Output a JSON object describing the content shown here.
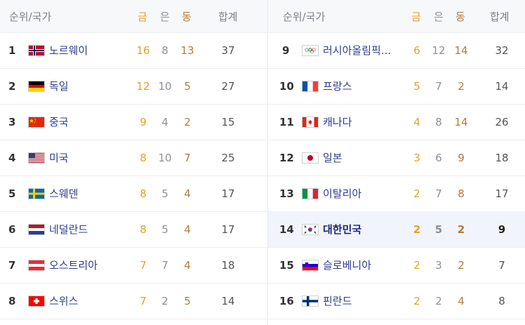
{
  "header": {
    "rank_country": "순위/국가",
    "gold": "금",
    "silver": "은",
    "bronze": "동",
    "total": "합계"
  },
  "rows": [
    {
      "rank": "1",
      "flag": "norway-flag-icon",
      "country": "노르웨이",
      "gold": "16",
      "silver": "8",
      "bronze": "13",
      "total": "37"
    },
    {
      "rank": "2",
      "flag": "germany-flag-icon",
      "country": "독일",
      "gold": "12",
      "silver": "10",
      "bronze": "5",
      "total": "27"
    },
    {
      "rank": "3",
      "flag": "china-flag-icon",
      "country": "중국",
      "gold": "9",
      "silver": "4",
      "bronze": "2",
      "total": "15"
    },
    {
      "rank": "4",
      "flag": "usa-flag-icon",
      "country": "미국",
      "gold": "8",
      "silver": "10",
      "bronze": "7",
      "total": "25"
    },
    {
      "rank": "5",
      "flag": "sweden-flag-icon",
      "country": "스웨덴",
      "gold": "8",
      "silver": "5",
      "bronze": "4",
      "total": "17"
    },
    {
      "rank": "6",
      "flag": "netherlands-flag-icon",
      "country": "네덜란드",
      "gold": "8",
      "silver": "5",
      "bronze": "4",
      "total": "17"
    },
    {
      "rank": "7",
      "flag": "austria-flag-icon",
      "country": "오스트리아",
      "gold": "7",
      "silver": "7",
      "bronze": "4",
      "total": "18"
    },
    {
      "rank": "8",
      "flag": "switzerland-flag-icon",
      "country": "스위스",
      "gold": "7",
      "silver": "2",
      "bronze": "5",
      "total": "14"
    },
    {
      "rank": "9",
      "flag": "olympic-flag-icon",
      "country": "러시아올림픽...",
      "gold": "6",
      "silver": "12",
      "bronze": "14",
      "total": "32"
    },
    {
      "rank": "10",
      "flag": "france-flag-icon",
      "country": "프랑스",
      "gold": "5",
      "silver": "7",
      "bronze": "2",
      "total": "14"
    },
    {
      "rank": "11",
      "flag": "canada-flag-icon",
      "country": "캐나다",
      "gold": "4",
      "silver": "8",
      "bronze": "14",
      "total": "26"
    },
    {
      "rank": "12",
      "flag": "japan-flag-icon",
      "country": "일본",
      "gold": "3",
      "silver": "6",
      "bronze": "9",
      "total": "18"
    },
    {
      "rank": "13",
      "flag": "italy-flag-icon",
      "country": "이탈리아",
      "gold": "2",
      "silver": "7",
      "bronze": "8",
      "total": "17"
    },
    {
      "rank": "14",
      "flag": "south-korea-flag-icon",
      "country": "대한민국",
      "gold": "2",
      "silver": "5",
      "bronze": "2",
      "total": "9"
    },
    {
      "rank": "15",
      "flag": "slovenia-flag-icon",
      "country": "슬로베니아",
      "gold": "2",
      "silver": "3",
      "bronze": "2",
      "total": "7"
    },
    {
      "rank": "16",
      "flag": "finland-flag-icon",
      "country": "핀란드",
      "gold": "2",
      "silver": "2",
      "bronze": "4",
      "total": "8"
    }
  ],
  "highlighted_country": "대한민국",
  "colors": {
    "gold": "#e0a12a",
    "silver": "#8e9098",
    "bronze": "#b07d3c",
    "country_link": "#2f3c8f",
    "highlight_bg": "#f2f4fb"
  }
}
